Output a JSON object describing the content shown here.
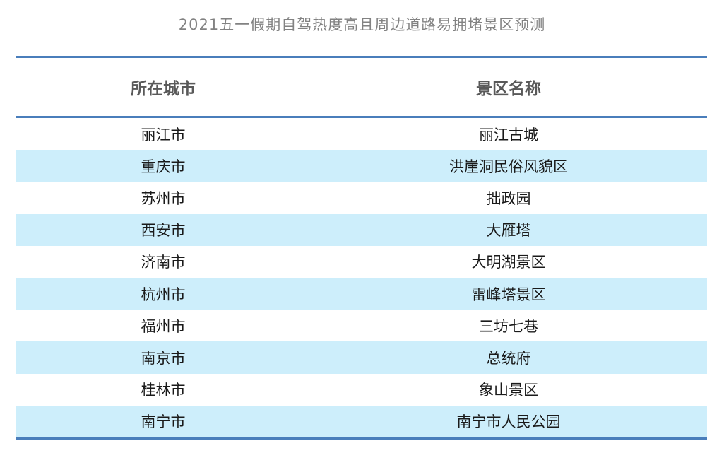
{
  "title": "2021五一假期自驾热度高且周边道路易拥堵景区预测",
  "table": {
    "columns": {
      "city": "所在城市",
      "scenic_area": "景区名称"
    },
    "rows": [
      {
        "city": "丽江市",
        "name": "丽江古城"
      },
      {
        "city": "重庆市",
        "name": "洪崖洞民俗风貌区"
      },
      {
        "city": "苏州市",
        "name": "拙政园"
      },
      {
        "city": "西安市",
        "name": "大雁塔"
      },
      {
        "city": "济南市",
        "name": "大明湖景区"
      },
      {
        "city": "杭州市",
        "name": "雷峰塔景区"
      },
      {
        "city": "福州市",
        "name": "三坊七巷"
      },
      {
        "city": "南京市",
        "name": "总统府"
      },
      {
        "city": "桂林市",
        "name": "象山景区"
      },
      {
        "city": "南宁市",
        "name": "南宁市人民公园"
      }
    ]
  },
  "colors": {
    "rule_blue": "#4a7ebb",
    "row_stripe": "#cdeefb",
    "title_gray": "#828282",
    "header_gray": "#595959",
    "body_text": "#1a1a1a"
  },
  "chart_data": {
    "type": "table",
    "title": "2021五一假期自驾热度高且周边道路易拥堵景区预测",
    "columns": [
      "所在城市",
      "景区名称"
    ],
    "rows": [
      [
        "丽江市",
        "丽江古城"
      ],
      [
        "重庆市",
        "洪崖洞民俗风貌区"
      ],
      [
        "苏州市",
        "拙政园"
      ],
      [
        "西安市",
        "大雁塔"
      ],
      [
        "济南市",
        "大明湖景区"
      ],
      [
        "杭州市",
        "雷峰塔景区"
      ],
      [
        "福州市",
        "三坊七巷"
      ],
      [
        "南京市",
        "总统府"
      ],
      [
        "桂林市",
        "象山景区"
      ],
      [
        "南宁市",
        "南宁市人民公园"
      ]
    ],
    "layout_hints": {
      "striped_rows": "odd rows highlighted #cdeefb",
      "rules": "horizontal blue rules above header, below header, below last row",
      "alignment": "all cells centered"
    }
  }
}
